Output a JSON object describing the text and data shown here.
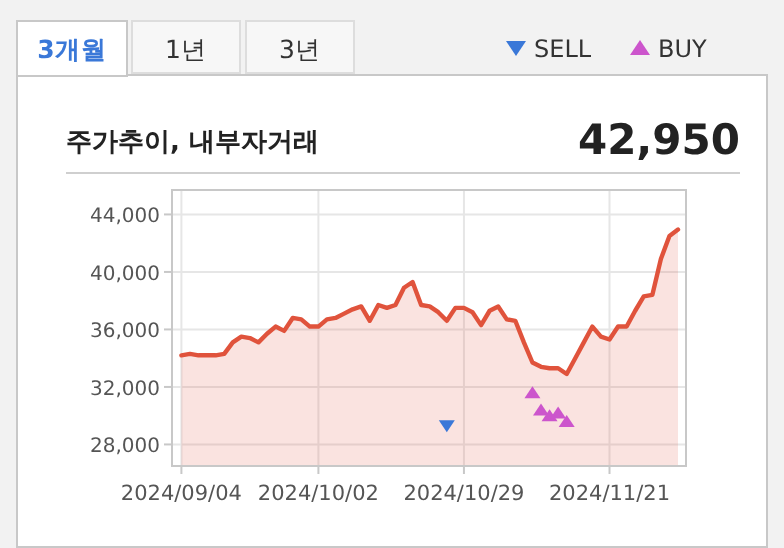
{
  "chart_data": {
    "type": "area",
    "title": "주가추이, 내부자거래",
    "annotations": [
      "3개월",
      "1년",
      "3년",
      "42,950"
    ],
    "categories": [
      "2024/09/04",
      null,
      null,
      null,
      null,
      null,
      null,
      null,
      null,
      null,
      null,
      null,
      null,
      null,
      null,
      null,
      "2024/10/02",
      null,
      null,
      null,
      null,
      null,
      null,
      null,
      null,
      null,
      null,
      null,
      null,
      null,
      null,
      null,
      null,
      "2024/10/29",
      null,
      null,
      null,
      null,
      null,
      null,
      null,
      null,
      null,
      null,
      null,
      null,
      null,
      null,
      null,
      null,
      "2024/11/21",
      null,
      null,
      null,
      null,
      null,
      null,
      null,
      null
    ],
    "series": [
      {
        "color": "#e0533c",
        "values": [
          34200,
          34300,
          34200,
          34200,
          34200,
          34300,
          35100,
          35500,
          35400,
          35100,
          35700,
          36200,
          35900,
          36800,
          36700,
          36200,
          36200,
          36700,
          36800,
          37100,
          37400,
          37600,
          36600,
          37700,
          37500,
          37700,
          38900,
          39300,
          37700,
          37600,
          37200,
          36600,
          37500,
          37500,
          37200,
          36300,
          37300,
          37600,
          36700,
          36600,
          35100,
          33700,
          33400,
          33300,
          33300,
          32900,
          34000,
          35100,
          36200,
          35500,
          35300,
          36200,
          36200,
          37300,
          38300,
          38400,
          40900,
          42500,
          42950
        ]
      },
      {
        "type": "scatter",
        "name": "SELL",
        "color": "#3a78d8",
        "marker": "triangle-down",
        "values": [
          null,
          null,
          null,
          null,
          null,
          null,
          null,
          null,
          null,
          null,
          null,
          null,
          null,
          null,
          null,
          null,
          null,
          null,
          null,
          null,
          null,
          null,
          null,
          null,
          null,
          null,
          null,
          null,
          null,
          null,
          null,
          29300,
          null,
          null,
          null,
          null,
          null,
          null,
          null,
          null,
          null,
          null,
          null,
          null,
          null,
          null,
          null,
          null,
          null,
          null,
          null,
          null,
          null,
          null,
          null,
          null,
          null,
          null,
          null
        ]
      },
      {
        "type": "scatter",
        "name": "BUY",
        "color": "#cc55cc",
        "marker": "triangle",
        "values": [
          null,
          null,
          null,
          null,
          null,
          null,
          null,
          null,
          null,
          null,
          null,
          null,
          null,
          null,
          null,
          null,
          null,
          null,
          null,
          null,
          null,
          null,
          null,
          null,
          null,
          null,
          null,
          null,
          null,
          null,
          null,
          null,
          null,
          null,
          null,
          null,
          null,
          null,
          null,
          null,
          null,
          31600,
          30400,
          30000,
          30200,
          29600,
          null,
          null,
          null,
          null,
          null,
          null,
          null,
          null,
          null,
          null,
          null,
          null,
          null
        ]
      }
    ],
    "ylim": [
      26500,
      45700
    ],
    "yticks": [
      {
        "value": 28000,
        "label": "28,000"
      },
      {
        "value": 32000,
        "label": "32,000"
      },
      {
        "value": 36000,
        "label": "36,000"
      },
      {
        "value": 40000,
        "label": "40,000"
      },
      {
        "value": 44000,
        "label": "44,000"
      }
    ],
    "grid": true,
    "legend": "top right"
  }
}
